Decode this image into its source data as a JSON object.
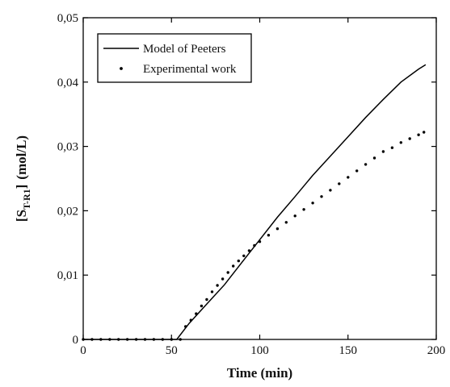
{
  "chart_data": {
    "type": "line",
    "xlabel": "Time (min)",
    "ylabel": {
      "main": "[S",
      "close": "]",
      "sub": "T-R1",
      "unit": "(mol/L)"
    },
    "xlim": [
      0,
      200
    ],
    "ylim": [
      0,
      0.05
    ],
    "x_ticks": [
      0,
      50,
      100,
      150,
      200
    ],
    "x_tick_labels": [
      "0",
      "50",
      "100",
      "150",
      "200"
    ],
    "y_ticks": [
      0,
      0.01,
      0.02,
      0.03,
      0.04,
      0.05
    ],
    "y_tick_labels": [
      "0",
      "0,01",
      "0,02",
      "0,03",
      "0,04",
      "0,05"
    ],
    "grid": false,
    "legend_position": "top-left",
    "series": [
      {
        "name": "Model of Peeters",
        "style": "solid-line",
        "color": "#000000",
        "x": [
          0,
          53,
          60,
          70,
          80,
          90,
          100,
          110,
          120,
          130,
          140,
          150,
          160,
          170,
          180,
          190,
          194
        ],
        "y": [
          0,
          0,
          0.0025,
          0.0055,
          0.0085,
          0.012,
          0.0155,
          0.019,
          0.0222,
          0.0255,
          0.0285,
          0.0315,
          0.0345,
          0.0373,
          0.04,
          0.042,
          0.0427
        ]
      },
      {
        "name": "Experimental work",
        "style": "dots",
        "color": "#000000",
        "x": [
          0,
          5,
          10,
          15,
          20,
          25,
          30,
          35,
          40,
          45,
          50,
          55,
          58,
          61,
          64,
          67,
          70,
          73,
          76,
          79,
          82,
          85,
          88,
          91,
          94,
          97,
          100,
          105,
          110,
          115,
          120,
          125,
          130,
          135,
          140,
          145,
          150,
          155,
          160,
          165,
          170,
          175,
          180,
          185,
          190,
          193
        ],
        "y": [
          0,
          0,
          0,
          0,
          0,
          0,
          0,
          0,
          0,
          0,
          0,
          0,
          0.002,
          0.003,
          0.004,
          0.0052,
          0.0062,
          0.0074,
          0.0084,
          0.0094,
          0.0104,
          0.0114,
          0.0122,
          0.013,
          0.0138,
          0.0146,
          0.0152,
          0.0162,
          0.0172,
          0.0182,
          0.0192,
          0.0202,
          0.0212,
          0.0222,
          0.0232,
          0.0242,
          0.0252,
          0.0262,
          0.0272,
          0.0282,
          0.0292,
          0.0298,
          0.0306,
          0.0312,
          0.0318,
          0.0322
        ]
      }
    ]
  }
}
